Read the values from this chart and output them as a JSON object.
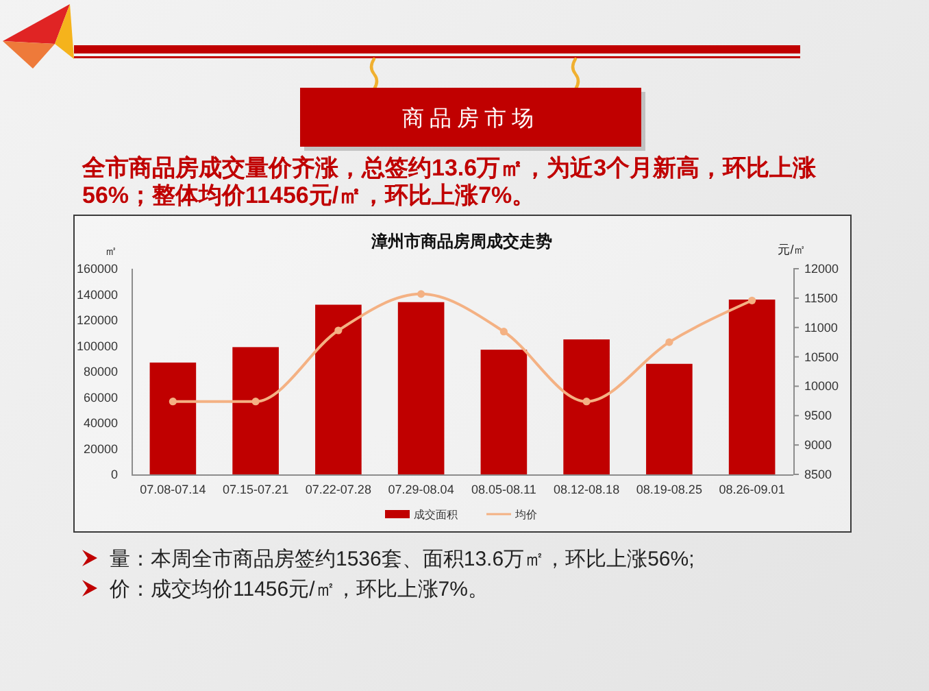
{
  "chart_data": {
    "type": "bar",
    "title": "漳州市商品房周成交走势",
    "ylabel": "㎡",
    "y2label": "元/㎡",
    "categories": [
      "07.08-07.14",
      "07.15-07.21",
      "07.22-07.28",
      "07.29-08.04",
      "08.05-08.11",
      "08.12-08.18",
      "08.19-08.25",
      "08.26-09.01"
    ],
    "series": [
      {
        "name": "成交面积",
        "color": "#c00000",
        "values": [
          87000,
          99000,
          132000,
          134000,
          97000,
          105000,
          86000,
          136000
        ]
      },
      {
        "name": "均价",
        "type": "line",
        "axis": "y2",
        "color": "#f4b183",
        "values": [
          9740,
          9740,
          10950,
          11570,
          10930,
          9740,
          10750,
          11460
        ]
      }
    ],
    "ylim": [
      0,
      160000
    ],
    "yticks": [
      0,
      20000,
      40000,
      60000,
      80000,
      100000,
      120000,
      140000,
      160000
    ],
    "y2lim": [
      8500,
      12000
    ],
    "y2ticks": [
      8500,
      9000,
      9500,
      10000,
      10500,
      11000,
      11500,
      12000
    ],
    "marker": "circle",
    "legend": "bottom",
    "grid": false,
    "annotations": [
      "商品房市场",
      "全市商品房成交量价齐涨，总签约13.6万㎡，为近3个月新高，环比上涨56%；整体均价11456元/㎡，环比上涨7%。",
      "量：本周全市商品房签约1536套、面积13.6万㎡，环比上涨56%;",
      "价：成交均价11456元/㎡，环比上涨7%。"
    ]
  }
}
